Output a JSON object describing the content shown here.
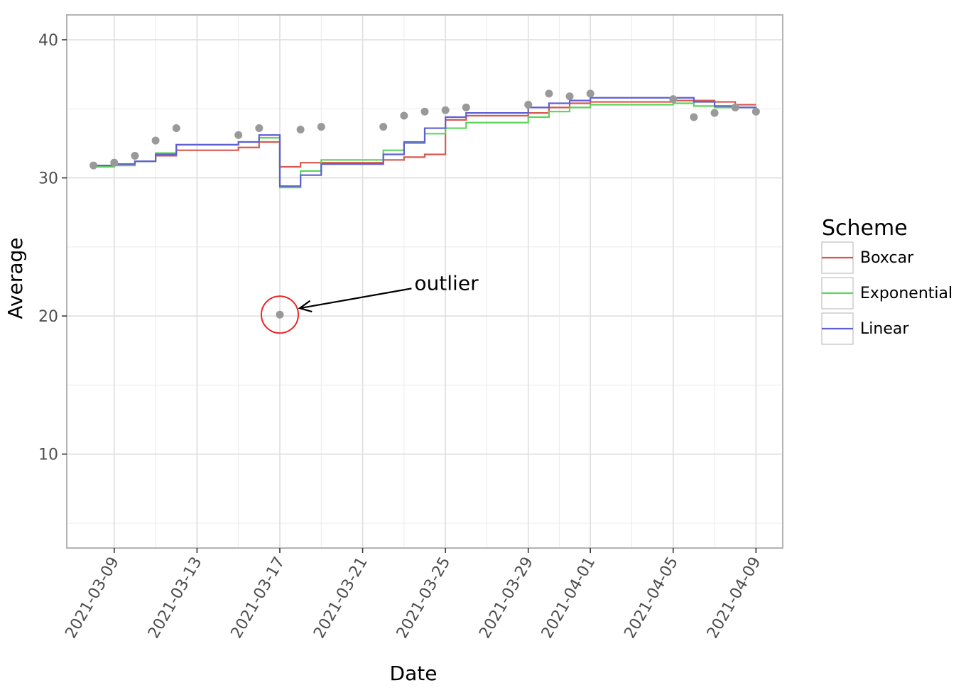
{
  "chart_data": {
    "type": "line",
    "title": "",
    "xlabel": "Date",
    "ylabel": "Average",
    "ylim": [
      3.2,
      41.8
    ],
    "xlim": [
      "2021-03-06T17:00",
      "2021-04-10T07:00"
    ],
    "grid": true,
    "legend_position": "right",
    "legend_title": "Scheme",
    "x_ticks": [
      "2021-03-09",
      "2021-03-13",
      "2021-03-17",
      "2021-03-21",
      "2021-03-25",
      "2021-03-29",
      "2021-04-01",
      "2021-04-05",
      "2021-04-09"
    ],
    "y_ticks": [
      10,
      20,
      30,
      40
    ],
    "points": {
      "color": "#999999",
      "x": [
        "2021-03-08",
        "2021-03-09",
        "2021-03-10",
        "2021-03-11",
        "2021-03-12",
        "2021-03-15",
        "2021-03-16",
        "2021-03-17",
        "2021-03-18",
        "2021-03-19",
        "2021-03-22",
        "2021-03-23",
        "2021-03-24",
        "2021-03-25",
        "2021-03-26",
        "2021-03-29",
        "2021-03-30",
        "2021-03-31",
        "2021-04-01",
        "2021-04-05",
        "2021-04-06",
        "2021-04-07",
        "2021-04-08",
        "2021-04-09"
      ],
      "y": [
        30.9,
        31.1,
        31.6,
        32.7,
        33.6,
        33.1,
        33.6,
        20.1,
        33.5,
        33.7,
        33.7,
        34.5,
        34.8,
        34.9,
        35.1,
        35.3,
        36.1,
        35.9,
        36.1,
        35.7,
        34.4,
        34.7,
        35.1,
        34.8
      ]
    },
    "series": [
      {
        "name": "Boxcar",
        "color": "#d8584e",
        "shape": "step",
        "values": [
          30.9,
          30.9,
          31.2,
          31.6,
          32.0,
          32.2,
          32.6,
          30.8,
          31.1,
          31.1,
          31.3,
          31.5,
          31.7,
          34.2,
          34.5,
          34.7,
          35.1,
          35.4,
          35.5,
          35.6,
          35.6,
          35.5,
          35.3,
          35.3
        ]
      },
      {
        "name": "Exponential",
        "color": "#5bd45b",
        "shape": "step",
        "values": [
          30.8,
          30.9,
          31.2,
          31.8,
          32.4,
          32.6,
          32.9,
          29.3,
          30.5,
          31.3,
          32.0,
          32.5,
          33.2,
          33.6,
          34.0,
          34.4,
          34.8,
          35.1,
          35.3,
          35.4,
          35.2,
          35.1,
          35.1,
          35.1
        ]
      },
      {
        "name": "Linear",
        "color": "#5f5fd4",
        "shape": "step",
        "values": [
          30.9,
          31.0,
          31.2,
          31.7,
          32.4,
          32.6,
          33.1,
          29.4,
          30.2,
          31.0,
          31.7,
          32.6,
          33.6,
          34.4,
          34.7,
          35.1,
          35.4,
          35.6,
          35.8,
          35.8,
          35.5,
          35.2,
          35.1,
          35.0
        ]
      }
    ],
    "annotations": [
      {
        "text": "outlier",
        "target_x": "2021-03-17",
        "target_y": 20.1,
        "text_x": "2021-03-23T12:00",
        "text_y": 22.3,
        "circle_color": "#ee2222"
      }
    ]
  }
}
